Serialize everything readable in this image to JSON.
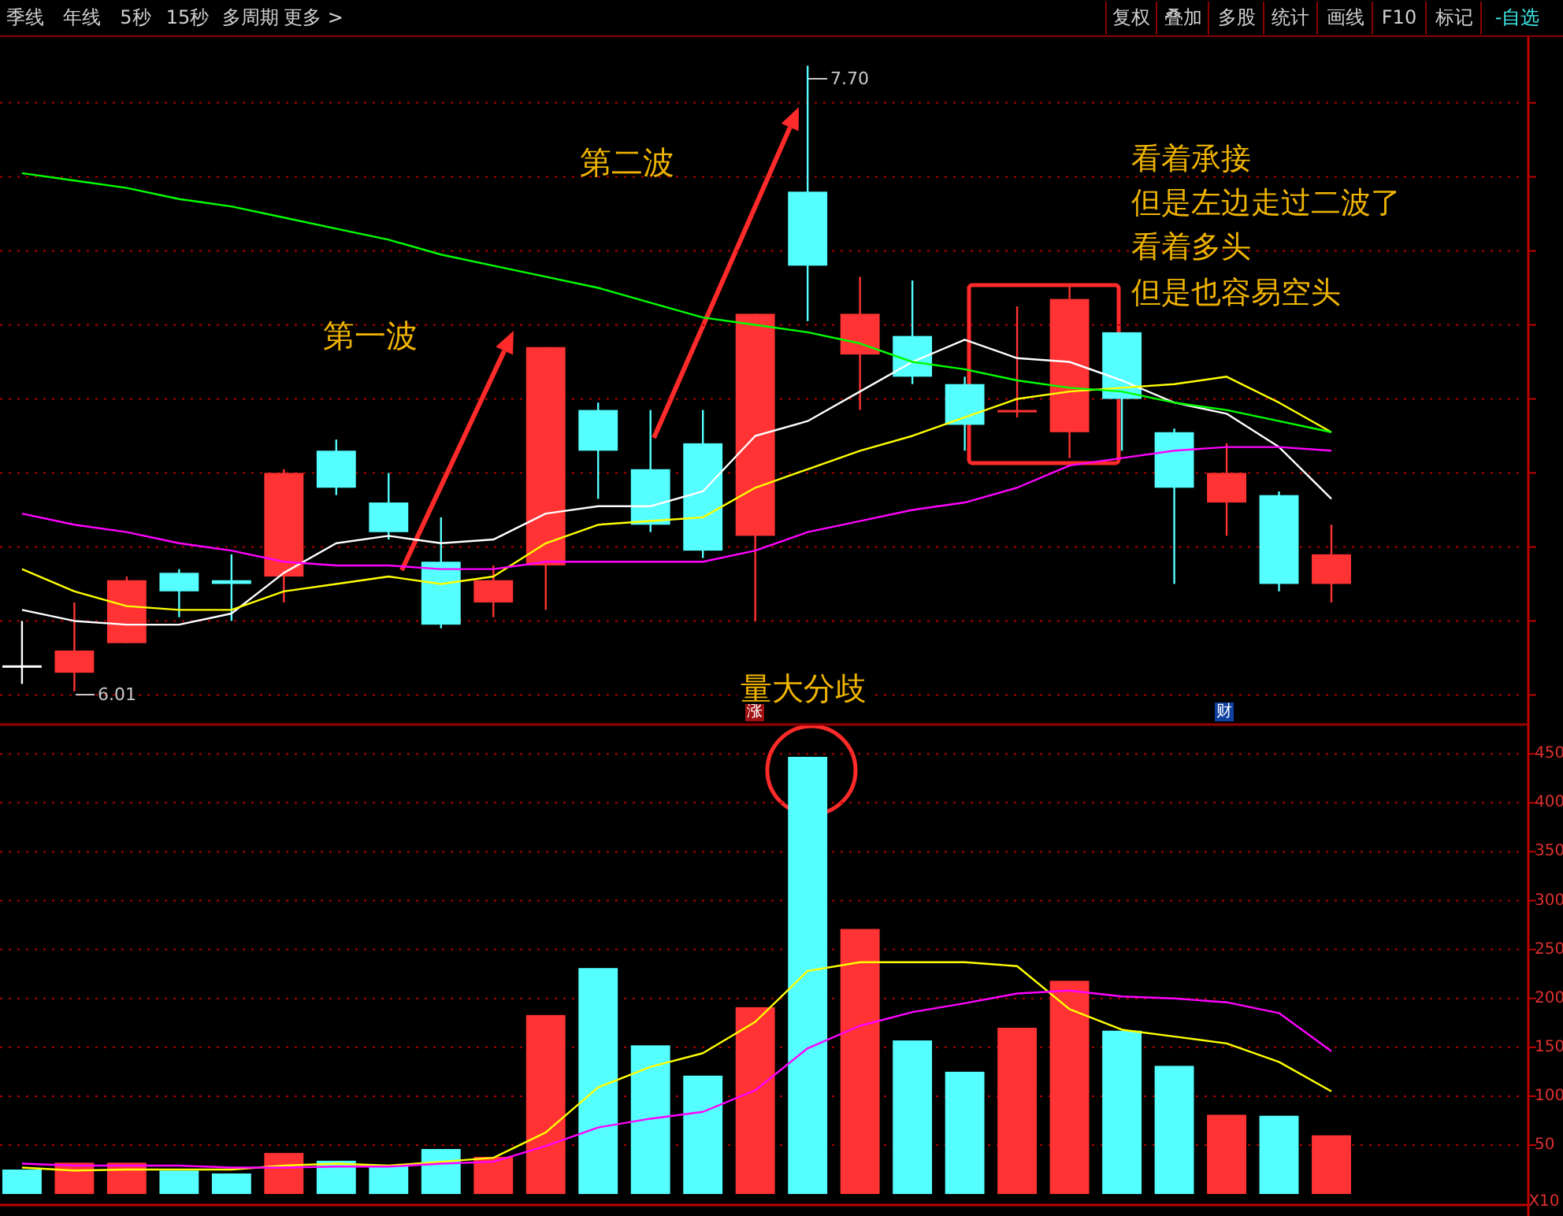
{
  "chart_data": [
    {
      "type": "candlestick",
      "categories": [
        null,
        null,
        null,
        null,
        null,
        null,
        null,
        null,
        null,
        null,
        null,
        null,
        null,
        null,
        null,
        null,
        null,
        null,
        null,
        null,
        null,
        null,
        null,
        null,
        null,
        null
      ],
      "ohlc": [
        [
          6.08,
          6.2,
          6.03,
          6.08
        ],
        [
          6.06,
          6.25,
          6.01,
          6.12
        ],
        [
          6.14,
          6.32,
          6.14,
          6.31
        ],
        [
          6.33,
          6.34,
          6.21,
          6.28
        ],
        [
          6.31,
          6.38,
          6.2,
          6.3
        ],
        [
          6.32,
          6.61,
          6.25,
          6.6
        ],
        [
          6.66,
          6.69,
          6.54,
          6.56
        ],
        [
          6.52,
          6.6,
          6.42,
          6.44
        ],
        [
          6.36,
          6.48,
          6.18,
          6.19
        ],
        [
          6.25,
          6.35,
          6.21,
          6.31
        ],
        [
          6.35,
          6.94,
          6.23,
          6.94
        ],
        [
          6.77,
          6.79,
          6.53,
          6.66
        ],
        [
          6.61,
          6.77,
          6.44,
          6.46
        ],
        [
          6.68,
          6.77,
          6.37,
          6.39
        ],
        [
          6.43,
          7.03,
          6.2,
          7.03
        ],
        [
          7.36,
          7.7,
          7.01,
          7.16
        ],
        [
          6.92,
          7.13,
          6.77,
          7.03
        ],
        [
          6.97,
          7.12,
          6.84,
          6.86
        ],
        [
          6.84,
          6.86,
          6.66,
          6.73
        ],
        [
          6.77,
          7.05,
          6.75,
          6.77
        ],
        [
          6.71,
          7.11,
          6.64,
          7.07
        ],
        [
          6.98,
          6.98,
          6.66,
          6.8
        ],
        [
          6.71,
          6.72,
          6.3,
          6.56
        ],
        [
          6.52,
          6.68,
          6.43,
          6.6
        ],
        [
          6.54,
          6.55,
          6.28,
          6.3
        ],
        [
          6.3,
          6.46,
          6.25,
          6.38
        ]
      ],
      "colors": [
        "#ffffff",
        "#ff3333",
        "#ff3333",
        "#55ffff",
        "#55ffff",
        "#ff3333",
        "#55ffff",
        "#55ffff",
        "#55ffff",
        "#ff3333",
        "#ff3333",
        "#55ffff",
        "#55ffff",
        "#55ffff",
        "#ff3333",
        "#55ffff",
        "#ff3333",
        "#55ffff",
        "#55ffff",
        "#ff3333",
        "#ff3333",
        "#55ffff",
        "#55ffff",
        "#ff3333",
        "#55ffff",
        "#ff3333"
      ],
      "series": [
        {
          "type": "line",
          "color": "#ffffff",
          "values": [
            6.23,
            6.2,
            6.19,
            6.19,
            6.22,
            6.33,
            6.41,
            6.43,
            6.41,
            6.42,
            6.49,
            6.51,
            6.51,
            6.55,
            6.7,
            6.74,
            6.82,
            6.9,
            6.96,
            6.91,
            6.9,
            6.85,
            6.79,
            6.76,
            6.67,
            6.53
          ]
        },
        {
          "type": "line",
          "color": "#ffff00",
          "values": [
            6.34,
            6.28,
            6.24,
            6.23,
            6.23,
            6.28,
            6.3,
            6.32,
            6.3,
            6.32,
            6.41,
            6.46,
            6.47,
            6.48,
            6.56,
            6.61,
            6.66,
            6.7,
            6.75,
            6.8,
            6.82,
            6.83,
            6.84,
            6.86,
            6.79,
            6.71
          ]
        },
        {
          "type": "line",
          "color": "#ff00ff",
          "values": [
            6.49,
            6.46,
            6.44,
            6.41,
            6.39,
            6.36,
            6.35,
            6.35,
            6.34,
            6.34,
            6.36,
            6.36,
            6.36,
            6.36,
            6.39,
            6.44,
            6.47,
            6.5,
            6.52,
            6.56,
            6.62,
            6.64,
            6.66,
            6.67,
            6.67,
            6.66
          ]
        },
        {
          "type": "line",
          "color": "#00ff00",
          "values": [
            7.41,
            7.39,
            7.37,
            7.34,
            7.32,
            7.29,
            7.26,
            7.23,
            7.19,
            7.16,
            7.13,
            7.1,
            7.06,
            7.02,
            7.0,
            6.98,
            6.95,
            6.9,
            6.88,
            6.85,
            6.83,
            6.82,
            6.79,
            6.77,
            6.74,
            6.71
          ]
        }
      ],
      "ylim": [
        5.92,
        7.78
      ],
      "yticks": [
        {
          "value": 6.0,
          "label": null
        },
        {
          "value": 6.2,
          "label": null
        },
        {
          "value": 6.4,
          "label": null
        },
        {
          "value": 6.6,
          "label": null
        },
        {
          "value": 6.8,
          "label": null
        },
        {
          "value": 7.0,
          "label": null
        },
        {
          "value": 7.2,
          "label": null
        },
        {
          "value": 7.4,
          "label": null
        },
        {
          "value": 7.6,
          "label": null
        }
      ],
      "grid": "y",
      "tick_labels": false,
      "annotations": [
        "季线",
        "年线",
        "5秒",
        "15秒",
        "多周期",
        "更多 >",
        "复权",
        "叠加",
        "多股",
        "统计",
        "画线",
        "F10",
        "标记",
        "-自选",
        "第一波",
        "第二波",
        "看着承接",
        "但是左边走过二波了",
        "看着多头",
        "但是也容易空头",
        "7.70",
        "6.01",
        "涨",
        "财"
      ]
    },
    {
      "type": "bar",
      "categories": [
        null,
        null,
        null,
        null,
        null,
        null,
        null,
        null,
        null,
        null,
        null,
        null,
        null,
        null,
        null,
        null,
        null,
        null,
        null,
        null,
        null,
        null,
        null,
        null,
        null,
        null
      ],
      "values": [
        25,
        32,
        32,
        24,
        21,
        42,
        34,
        29,
        46,
        38,
        183,
        231,
        152,
        121,
        191,
        447,
        271,
        157,
        125,
        170,
        218,
        167,
        131,
        81,
        80,
        60
      ],
      "colors": [
        "#55ffff",
        "#ff3333",
        "#ff3333",
        "#55ffff",
        "#55ffff",
        "#ff3333",
        "#55ffff",
        "#55ffff",
        "#55ffff",
        "#ff3333",
        "#ff3333",
        "#55ffff",
        "#55ffff",
        "#55ffff",
        "#ff3333",
        "#55ffff",
        "#ff3333",
        "#55ffff",
        "#55ffff",
        "#ff3333",
        "#ff3333",
        "#55ffff",
        "#55ffff",
        "#ff3333",
        "#55ffff",
        "#ff3333"
      ],
      "series": [
        {
          "type": "line",
          "color": "#ffff00",
          "values": [
            27,
            24,
            25,
            25,
            25,
            29,
            31,
            29,
            33,
            37,
            63,
            109,
            130,
            144,
            176,
            228,
            237,
            237,
            237,
            233,
            189,
            168,
            161,
            154,
            135,
            105
          ]
        },
        {
          "type": "line",
          "color": "#ff00ff",
          "values": [
            31,
            29,
            29,
            29,
            27,
            27,
            28,
            28,
            31,
            33,
            49,
            68,
            77,
            84,
            106,
            149,
            172,
            186,
            195,
            205,
            208,
            202,
            200,
            196,
            185,
            146
          ]
        }
      ],
      "ylim": [
        -8,
        480
      ],
      "yticks": [
        50,
        100,
        150,
        200,
        250,
        300,
        350,
        400,
        450
      ],
      "grid": "y",
      "tick_labels": "y",
      "annotations": [
        "量大分歧",
        "X10"
      ]
    }
  ]
}
